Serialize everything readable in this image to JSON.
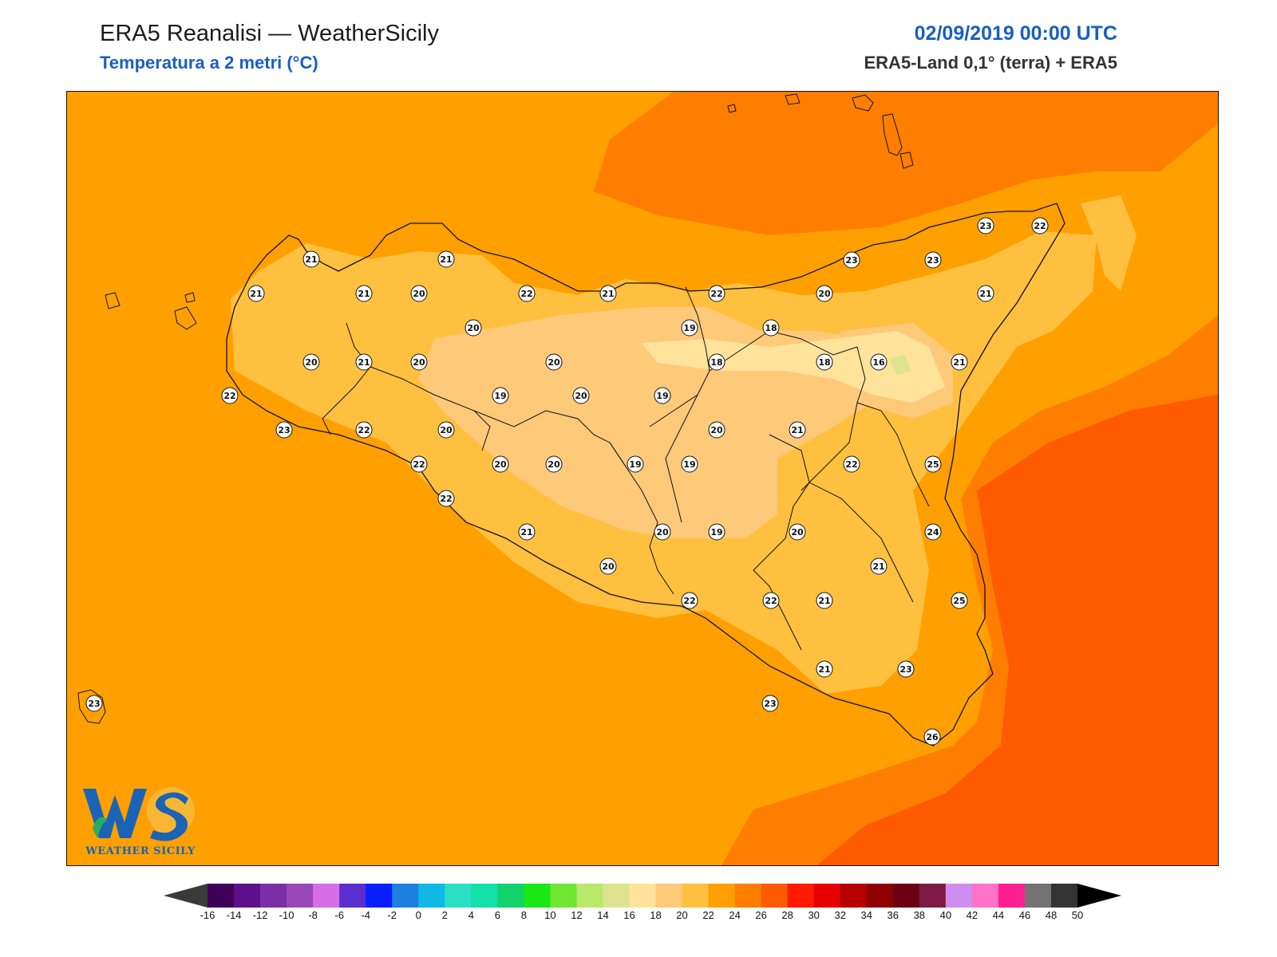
{
  "header": {
    "title": "ERA5 Reanalisi — WeatherSicily",
    "subtitle": "Temperatura a 2 metri (°C)",
    "datetime": "02/09/2019 00:00 UTC",
    "source": "ERA5-Land 0,1° (terra) + ERA5"
  },
  "logo": {
    "initials": "WS",
    "name": "WEATHER SICILY"
  },
  "colorbar": {
    "unit": "°C",
    "ticks": [
      "-16",
      "-14",
      "-12",
      "-10",
      "-8",
      "-6",
      "-4",
      "-2",
      "0",
      "2",
      "4",
      "6",
      "8",
      "10",
      "12",
      "14",
      "16",
      "18",
      "20",
      "22",
      "24",
      "26",
      "28",
      "30",
      "32",
      "34",
      "36",
      "38",
      "40",
      "42",
      "44",
      "46",
      "48",
      "50"
    ],
    "colors": [
      "#3f0058",
      "#5e0f8c",
      "#7b2fa6",
      "#9a47b8",
      "#d66ee6",
      "#5a2fcf",
      "#0a1fff",
      "#1d7fe0",
      "#10b8e6",
      "#29e0c4",
      "#12e0a8",
      "#12d36a",
      "#19e815",
      "#6fe632",
      "#b9e86a",
      "#dde38e",
      "#ffe39a",
      "#ffc97a",
      "#ffc040",
      "#ffa000",
      "#ff7e00",
      "#ff5a00",
      "#ff1a00",
      "#e60000",
      "#b80000",
      "#8f0000",
      "#6b0012",
      "#7f1a44",
      "#cf8df0",
      "#ff72c9",
      "#ff1f93",
      "#737373",
      "#333333"
    ],
    "under_color": "#3a3a3a",
    "over_color": "#000000"
  },
  "stations": [
    {
      "v": "21"
    },
    {
      "v": "21"
    },
    {
      "v": "23"
    },
    {
      "v": "22"
    },
    {
      "v": "21"
    },
    {
      "v": "21"
    },
    {
      "v": "20"
    },
    {
      "v": "22"
    },
    {
      "v": "21"
    },
    {
      "v": "22"
    },
    {
      "v": "20"
    },
    {
      "v": "23"
    },
    {
      "v": "21"
    },
    {
      "v": "23"
    },
    {
      "v": "20"
    },
    {
      "v": "19"
    },
    {
      "v": "18"
    },
    {
      "v": "20"
    },
    {
      "v": "21"
    },
    {
      "v": "20"
    },
    {
      "v": "20"
    },
    {
      "v": "18"
    },
    {
      "v": "18"
    },
    {
      "v": "16"
    },
    {
      "v": "21"
    },
    {
      "v": "22"
    },
    {
      "v": "19"
    },
    {
      "v": "20"
    },
    {
      "v": "19"
    },
    {
      "v": "23"
    },
    {
      "v": "22"
    },
    {
      "v": "20"
    },
    {
      "v": "20"
    },
    {
      "v": "21"
    },
    {
      "v": "22"
    },
    {
      "v": "20"
    },
    {
      "v": "20"
    },
    {
      "v": "19"
    },
    {
      "v": "19"
    },
    {
      "v": "22"
    },
    {
      "v": "25"
    },
    {
      "v": "22"
    },
    {
      "v": "21"
    },
    {
      "v": "20"
    },
    {
      "v": "19"
    },
    {
      "v": "20"
    },
    {
      "v": "24"
    },
    {
      "v": "20"
    },
    {
      "v": "21"
    },
    {
      "v": "22"
    },
    {
      "v": "22"
    },
    {
      "v": "21"
    },
    {
      "v": "25"
    },
    {
      "v": "21"
    },
    {
      "v": "23"
    },
    {
      "v": "23"
    },
    {
      "v": "23"
    },
    {
      "v": "26"
    }
  ]
}
